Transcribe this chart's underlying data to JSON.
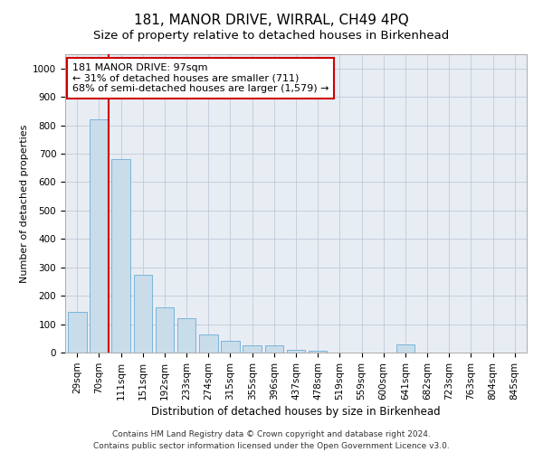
{
  "title": "181, MANOR DRIVE, WIRRAL, CH49 4PQ",
  "subtitle": "Size of property relative to detached houses in Birkenhead",
  "xlabel": "Distribution of detached houses by size in Birkenhead",
  "ylabel": "Number of detached properties",
  "categories": [
    "29sqm",
    "70sqm",
    "111sqm",
    "151sqm",
    "192sqm",
    "233sqm",
    "274sqm",
    "315sqm",
    "355sqm",
    "396sqm",
    "437sqm",
    "478sqm",
    "519sqm",
    "559sqm",
    "600sqm",
    "641sqm",
    "682sqm",
    "723sqm",
    "763sqm",
    "804sqm",
    "845sqm"
  ],
  "values": [
    143,
    820,
    680,
    275,
    160,
    120,
    65,
    40,
    25,
    25,
    10,
    5,
    0,
    0,
    0,
    30,
    0,
    0,
    0,
    0,
    0
  ],
  "bar_color": "#c9dcea",
  "bar_edge_color": "#6aaed6",
  "annotation_line1": "181 MANOR DRIVE: 97sqm",
  "annotation_line2": "← 31% of detached houses are smaller (711)",
  "annotation_line3": "68% of semi-detached houses are larger (1,579) →",
  "annotation_box_color": "#ffffff",
  "annotation_border_color": "#cc0000",
  "ylim": [
    0,
    1050
  ],
  "yticks": [
    0,
    100,
    200,
    300,
    400,
    500,
    600,
    700,
    800,
    900,
    1000
  ],
  "grid_color": "#c0cad8",
  "bg_color": "#e8edf4",
  "footer_line1": "Contains HM Land Registry data © Crown copyright and database right 2024.",
  "footer_line2": "Contains public sector information licensed under the Open Government Licence v3.0.",
  "property_line_color": "#cc0000",
  "property_line_x": 1.42,
  "title_fontsize": 11,
  "subtitle_fontsize": 9.5,
  "ylabel_fontsize": 8,
  "xlabel_fontsize": 8.5,
  "tick_fontsize": 7.5,
  "footer_fontsize": 6.5,
  "annotation_fontsize": 8
}
